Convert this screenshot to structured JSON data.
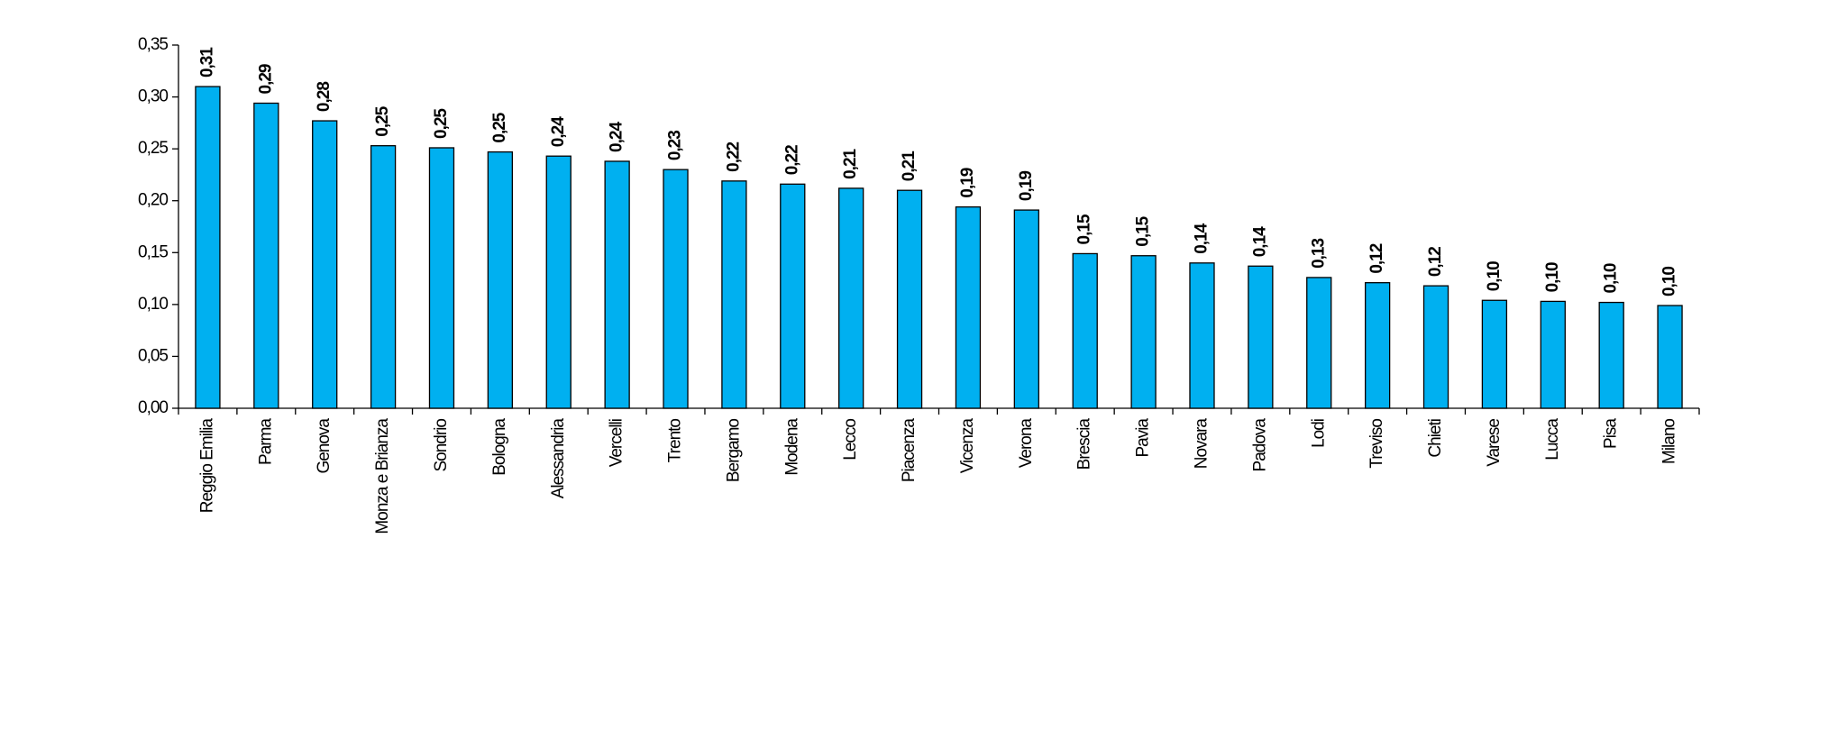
{
  "chart_data": {
    "type": "bar",
    "categories": [
      "Reggio Emilia",
      "Parma",
      "Genova",
      "Monza e Brianza",
      "Sondrio",
      "Bologna",
      "Alessandria",
      "Vercelli",
      "Trento",
      "Bergamo",
      "Modena",
      "Lecco",
      "Piacenza",
      "Vicenza",
      "Verona",
      "Brescia",
      "Pavia",
      "Novara",
      "Padova",
      "Lodi",
      "Treviso",
      "Chieti",
      "Varese",
      "Lucca",
      "Pisa",
      "Milano"
    ],
    "values": [
      0.31,
      0.294,
      0.277,
      0.253,
      0.251,
      0.247,
      0.243,
      0.238,
      0.23,
      0.219,
      0.216,
      0.212,
      0.21,
      0.194,
      0.191,
      0.149,
      0.147,
      0.14,
      0.137,
      0.126,
      0.121,
      0.118,
      0.104,
      0.103,
      0.102,
      0.099
    ],
    "value_labels": [
      "0,31",
      "0,29",
      "0,28",
      "0,25",
      "0,25",
      "0,25",
      "0,24",
      "0,24",
      "0,23",
      "0,22",
      "0,22",
      "0,21",
      "0,21",
      "0,19",
      "0,19",
      "0,15",
      "0,15",
      "0,14",
      "0,14",
      "0,13",
      "0,12",
      "0,12",
      "0,10",
      "0,10",
      "0,10",
      "0,10"
    ],
    "color": "#00b0f0",
    "ylim": [
      0,
      0.35
    ],
    "yticks": [
      {
        "value": 0,
        "label": "0,00"
      },
      {
        "value": 0.05,
        "label": "0,05"
      },
      {
        "value": 0.1,
        "label": "0,10"
      },
      {
        "value": 0.15,
        "label": "0,15"
      },
      {
        "value": 0.2,
        "label": "0,20"
      },
      {
        "value": 0.25,
        "label": "0,25"
      },
      {
        "value": 0.3,
        "label": "0,30"
      },
      {
        "value": 0.35,
        "label": "0,35"
      }
    ],
    "grid": false
  }
}
